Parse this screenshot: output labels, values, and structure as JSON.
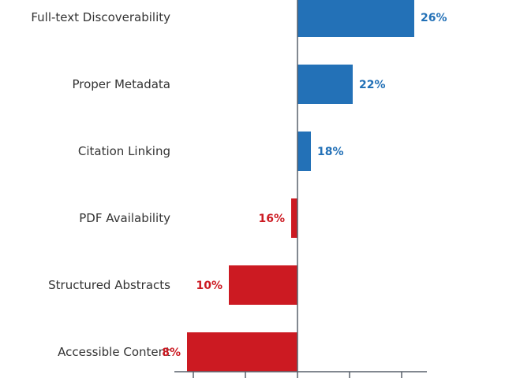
{
  "chart_data": {
    "type": "bar",
    "orientation": "horizontal",
    "categories": [
      "Full-text Discoverability",
      "Proper Metadata",
      "Citation Linking",
      "PDF Availability",
      "Structured Abstracts",
      "Accessible Content"
    ],
    "values": [
      26,
      22,
      18,
      16,
      10,
      8
    ],
    "value_labels": [
      "26%",
      "22%",
      "18%",
      "16%",
      "10%",
      "8%"
    ],
    "direction": [
      "positive",
      "positive",
      "positive",
      "negative",
      "negative",
      "negative"
    ],
    "title": "",
    "xlabel": "",
    "ylabel": "",
    "grid": false,
    "legend": "none",
    "colors": {
      "positive": "#2371b7",
      "negative": "#cc1a22",
      "axis": "#59616b"
    }
  }
}
